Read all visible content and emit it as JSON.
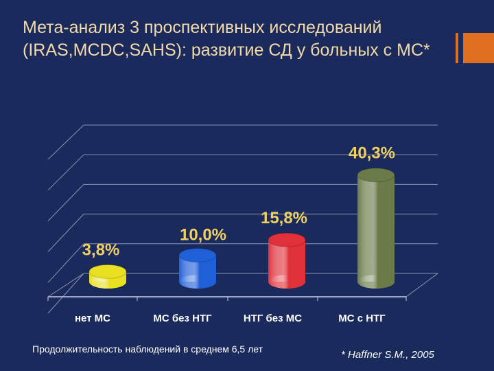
{
  "title": "Мета-анализ 3 проспективных исследований (IRAS,MCDC,SAHS): развитие СД у больных с МС*",
  "footnote": "Продолжительность наблюдений в среднем 6,5 лет",
  "citation": "* Haffner S.M., 2005",
  "colors": {
    "background": "#1a2a5c",
    "title": "#f2d9a8",
    "accent": "#e07020",
    "value_label": "#f0d060"
  },
  "chart_data": {
    "type": "bar",
    "categories": [
      "нет МС",
      "МС без НТГ",
      "НТГ без МС",
      "МС с НТГ"
    ],
    "values": [
      3.8,
      10.0,
      15.8,
      40.3
    ],
    "value_labels": [
      "3,8%",
      "10,0%",
      "15,8%",
      "40,3%"
    ],
    "bar_colors": [
      "#e8e020",
      "#1f5fd8",
      "#e0303a",
      "#6a7a48"
    ],
    "ylim": [
      0,
      50
    ],
    "grid": true,
    "legend": "none",
    "style": "3d-cylinder"
  }
}
